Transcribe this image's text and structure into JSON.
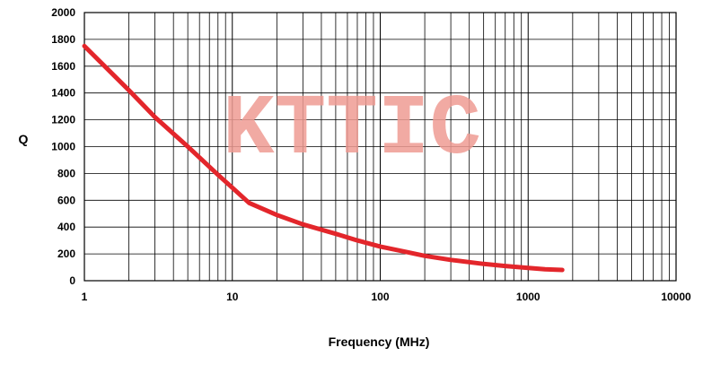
{
  "chart_data": {
    "type": "line",
    "title": "",
    "xlabel": "Frequency (MHz)",
    "ylabel": "Q",
    "x_scale": "log",
    "xlim": [
      1,
      10000
    ],
    "ylim": [
      0,
      2000
    ],
    "x_ticks": [
      1,
      10,
      100,
      1000,
      10000
    ],
    "y_ticks": [
      0,
      200,
      400,
      600,
      800,
      1000,
      1200,
      1400,
      1600,
      1800,
      2000
    ],
    "grid": true,
    "legend": "none",
    "watermark": "KTTIC",
    "colors": {
      "series": "#e3262b",
      "watermark": "#ef9b93",
      "grid": "#000000"
    },
    "series": [
      {
        "x": [
          1,
          2,
          3,
          5,
          8,
          13,
          20,
          30,
          50,
          70,
          100,
          150,
          200,
          300,
          500,
          700,
          1000,
          1300,
          1700
        ],
        "y": [
          1750,
          1420,
          1220,
          1000,
          790,
          580,
          490,
          420,
          350,
          300,
          255,
          215,
          185,
          155,
          125,
          110,
          95,
          85,
          80
        ]
      }
    ]
  }
}
